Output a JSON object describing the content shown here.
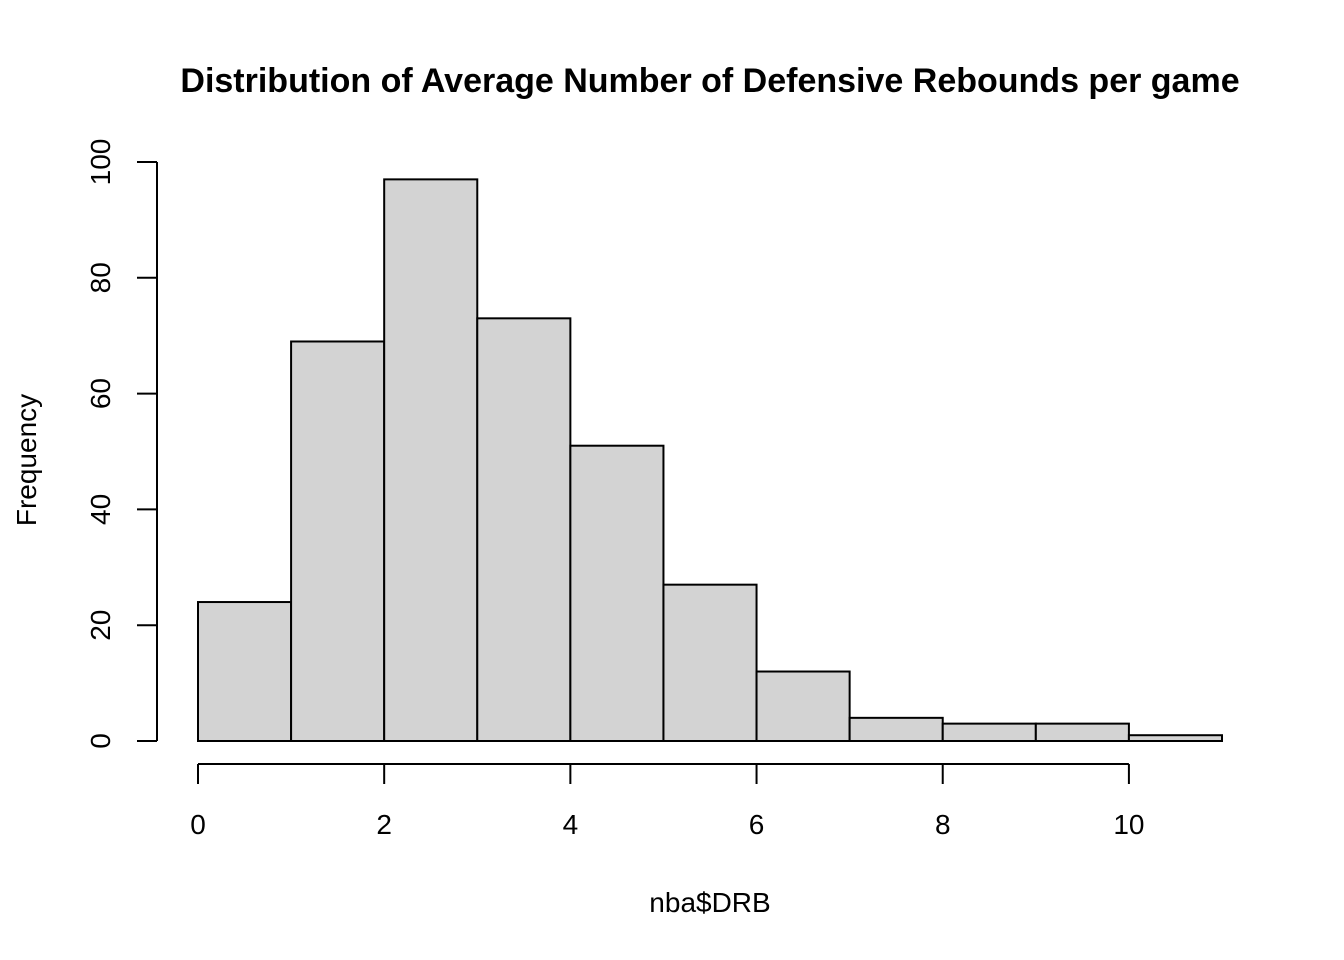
{
  "chart_data": {
    "type": "bar",
    "title": "Distribution of Average Number of Defensive Rebounds per game",
    "xlabel": "nba$DRB",
    "ylabel": "Frequency",
    "bins": [
      {
        "start": 0,
        "end": 1,
        "count": 24
      },
      {
        "start": 1,
        "end": 2,
        "count": 69
      },
      {
        "start": 2,
        "end": 3,
        "count": 97
      },
      {
        "start": 3,
        "end": 4,
        "count": 73
      },
      {
        "start": 4,
        "end": 5,
        "count": 51
      },
      {
        "start": 5,
        "end": 6,
        "count": 27
      },
      {
        "start": 6,
        "end": 7,
        "count": 12
      },
      {
        "start": 7,
        "end": 8,
        "count": 4
      },
      {
        "start": 8,
        "end": 9,
        "count": 3
      },
      {
        "start": 9,
        "end": 10,
        "count": 3
      },
      {
        "start": 10,
        "end": 11,
        "count": 1
      }
    ],
    "xlim": [
      0,
      11
    ],
    "ylim": [
      0,
      100
    ],
    "x_ticks": [
      0,
      2,
      4,
      6,
      8,
      10
    ],
    "y_ticks": [
      0,
      20,
      40,
      60,
      80,
      100
    ],
    "grid": false,
    "colors": {
      "bar_fill": "#d3d3d3",
      "bar_stroke": "#000000"
    }
  }
}
